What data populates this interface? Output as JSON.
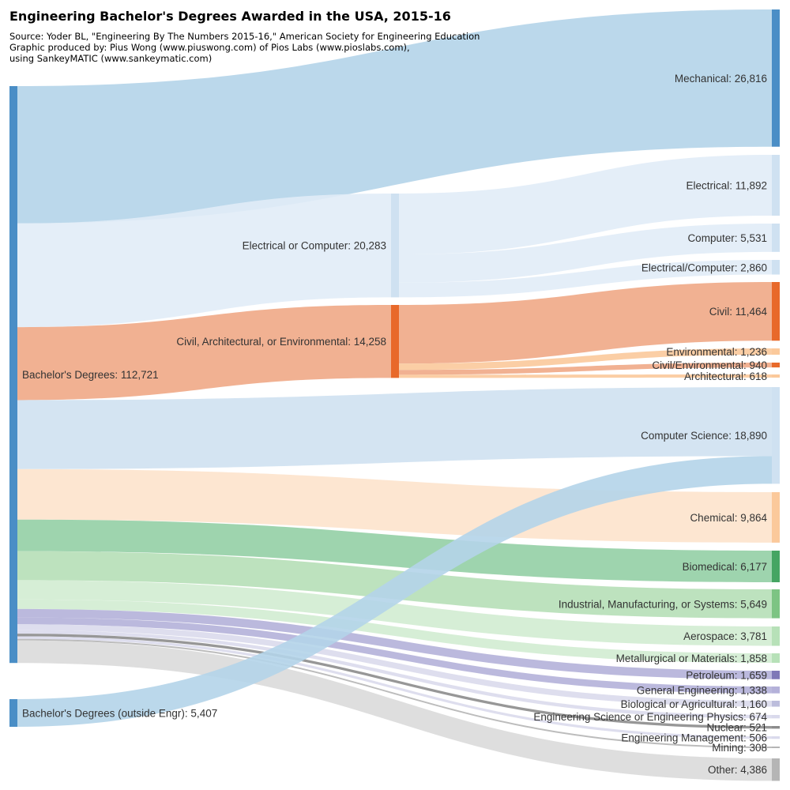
{
  "header": {
    "title": "Engineering Bachelor's Degrees Awarded in the USA, 2015-16",
    "source_lines": [
      "Source: Yoder BL, \"Engineering By The Numbers 2015-16,\" American Society for Engineering Education",
      "Graphic produced by: Pius Wong (www.piuswong.com) of Pios Labs (www.pioslabs.com),",
      "using SankeyMATIC (www.sankeymatic.com)"
    ]
  },
  "colors": {
    "blue": "#4a8ec6",
    "blue_flow": "#b4d4e9",
    "light_blue": "#cfe1f1",
    "light_blue_flow": "#e1ecf7",
    "orange": "#e8692a",
    "orange_flow": "#f0a886",
    "peach": "#fbc99b",
    "peach_flow": "#fde3cc",
    "green_dark": "#45a562",
    "green_dark_flow": "#94cfa5",
    "green_mid": "#7dc483",
    "green_mid_flow": "#b6dfb7",
    "green_light": "#b7e1b8",
    "green_light_flow": "#d2ecd2",
    "purple": "#7e78b7",
    "purple_flow": "#b4b1d9",
    "lavender": "#bcbddc",
    "lavender_flow": "#dadaec",
    "grey": "#b5b5b5",
    "grey_flow": "#dadada",
    "dark_grey": "#8c8c8c",
    "label": "#333333"
  },
  "chart_data": {
    "type": "sankey",
    "title": "Engineering Bachelor's Degrees Awarded in the USA, 2015-16",
    "nodes": [
      {
        "id": "bachelors",
        "label": "Bachelor's Degrees: 112,721",
        "name": "Bachelor's Degrees",
        "value": 112721
      },
      {
        "id": "outside",
        "label": "Bachelor's Degrees (outside Engr): 5,407",
        "name": "Bachelor's Degrees (outside Engr)",
        "value": 5407
      },
      {
        "id": "ec",
        "label": "Electrical or Computer: 20,283",
        "name": "Electrical or Computer",
        "value": 20283
      },
      {
        "id": "cae",
        "label": "Civil, Architectural, or Environmental: 14,258",
        "name": "Civil, Architectural, or Environmental",
        "value": 14258
      },
      {
        "id": "mechanical",
        "label": "Mechanical: 26,816",
        "name": "Mechanical",
        "value": 26816
      },
      {
        "id": "electrical",
        "label": "Electrical: 11,892",
        "name": "Electrical",
        "value": 11892
      },
      {
        "id": "computer",
        "label": "Computer: 5,531",
        "name": "Computer",
        "value": 5531
      },
      {
        "id": "elec_comp",
        "label": "Electrical/Computer: 2,860",
        "name": "Electrical/Computer",
        "value": 2860
      },
      {
        "id": "civil",
        "label": "Civil: 11,464",
        "name": "Civil",
        "value": 11464
      },
      {
        "id": "environmental",
        "label": "Environmental: 1,236",
        "name": "Environmental",
        "value": 1236
      },
      {
        "id": "civil_env",
        "label": "Civil/Environmental: 940",
        "name": "Civil/Environmental",
        "value": 940
      },
      {
        "id": "architectural",
        "label": "Architectural: 618",
        "name": "Architectural",
        "value": 618
      },
      {
        "id": "cs",
        "label": "Computer Science: 18,890",
        "name": "Computer Science",
        "value": 18890
      },
      {
        "id": "chemical",
        "label": "Chemical: 9,864",
        "name": "Chemical",
        "value": 9864
      },
      {
        "id": "biomedical",
        "label": "Biomedical: 6,177",
        "name": "Biomedical",
        "value": 6177
      },
      {
        "id": "industrial",
        "label": "Industrial, Manufacturing, or Systems: 5,649",
        "name": "Industrial, Manufacturing, or Systems",
        "value": 5649
      },
      {
        "id": "aerospace",
        "label": "Aerospace: 3,781",
        "name": "Aerospace",
        "value": 3781
      },
      {
        "id": "metallurgical",
        "label": "Metallurgical or Materials: 1,858",
        "name": "Metallurgical or Materials",
        "value": 1858
      },
      {
        "id": "petroleum",
        "label": "Petroleum: 1,659",
        "name": "Petroleum",
        "value": 1659
      },
      {
        "id": "general",
        "label": "General Engineering: 1,338",
        "name": "General Engineering",
        "value": 1338
      },
      {
        "id": "bio_ag",
        "label": "Biological or Agricultural: 1,160",
        "name": "Biological or Agricultural",
        "value": 1160
      },
      {
        "id": "eng_sci",
        "label": "Engineering Science or Engineering Physics: 674",
        "name": "Engineering Science or Engineering Physics",
        "value": 674
      },
      {
        "id": "nuclear",
        "label": "Nuclear: 521",
        "name": "Nuclear",
        "value": 521
      },
      {
        "id": "eng_mgmt",
        "label": "Engineering Management: 506",
        "name": "Engineering Management",
        "value": 506
      },
      {
        "id": "mining",
        "label": "Mining: 308",
        "name": "Mining",
        "value": 308
      },
      {
        "id": "other",
        "label": "Other: 4,386",
        "name": "Other",
        "value": 4386
      }
    ],
    "links": [
      {
        "source": "bachelors",
        "target": "mechanical",
        "value": 26816
      },
      {
        "source": "bachelors",
        "target": "ec",
        "value": 20283
      },
      {
        "source": "bachelors",
        "target": "cae",
        "value": 14258
      },
      {
        "source": "bachelors",
        "target": "cs",
        "value": 13483
      },
      {
        "source": "bachelors",
        "target": "chemical",
        "value": 9864
      },
      {
        "source": "bachelors",
        "target": "biomedical",
        "value": 6177
      },
      {
        "source": "bachelors",
        "target": "industrial",
        "value": 5649
      },
      {
        "source": "bachelors",
        "target": "aerospace",
        "value": 3781
      },
      {
        "source": "bachelors",
        "target": "metallurgical",
        "value": 1858
      },
      {
        "source": "bachelors",
        "target": "petroleum",
        "value": 1659
      },
      {
        "source": "bachelors",
        "target": "general",
        "value": 1338
      },
      {
        "source": "bachelors",
        "target": "bio_ag",
        "value": 1160
      },
      {
        "source": "bachelors",
        "target": "eng_sci",
        "value": 674
      },
      {
        "source": "bachelors",
        "target": "nuclear",
        "value": 521
      },
      {
        "source": "bachelors",
        "target": "eng_mgmt",
        "value": 506
      },
      {
        "source": "bachelors",
        "target": "mining",
        "value": 308
      },
      {
        "source": "bachelors",
        "target": "other",
        "value": 4386
      },
      {
        "source": "ec",
        "target": "electrical",
        "value": 11892
      },
      {
        "source": "ec",
        "target": "computer",
        "value": 5531
      },
      {
        "source": "ec",
        "target": "elec_comp",
        "value": 2860
      },
      {
        "source": "cae",
        "target": "civil",
        "value": 11464
      },
      {
        "source": "cae",
        "target": "environmental",
        "value": 1236
      },
      {
        "source": "cae",
        "target": "civil_env",
        "value": 940
      },
      {
        "source": "cae",
        "target": "architectural",
        "value": 618
      },
      {
        "source": "outside",
        "target": "cs",
        "value": 5407
      }
    ]
  }
}
